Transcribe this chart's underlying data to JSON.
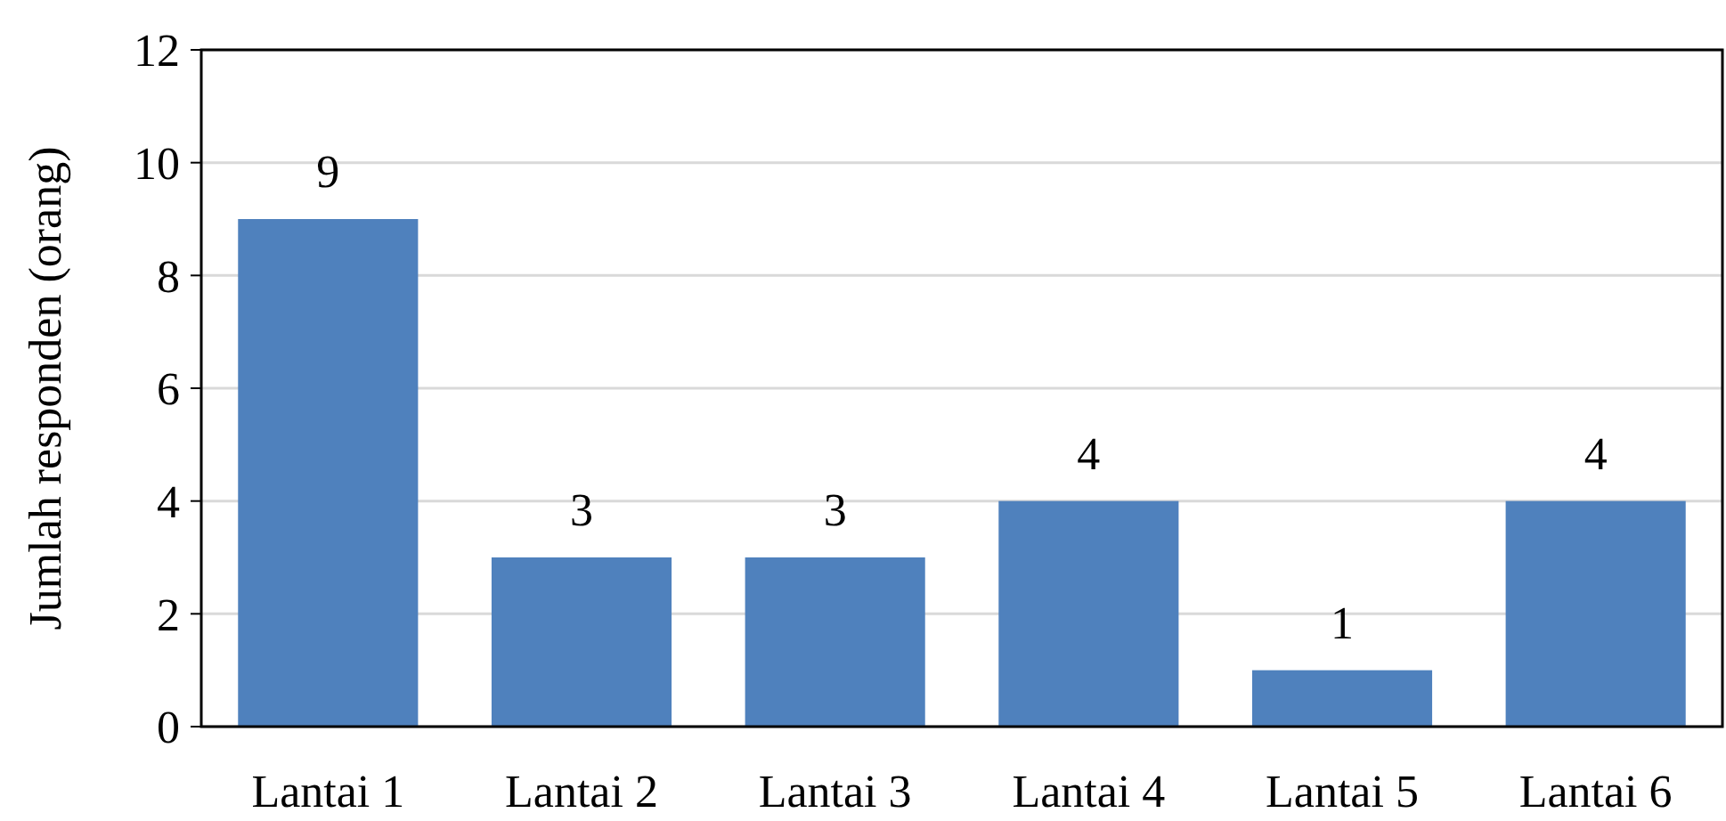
{
  "chart_data": {
    "type": "bar",
    "ylabel": "Jumlah responden (orang)",
    "categories": [
      "Lantai 1",
      "Lantai 2",
      "Lantai 3",
      "Lantai 4",
      "Lantai 5",
      "Lantai 6"
    ],
    "values": [
      9,
      3,
      3,
      4,
      1,
      4
    ],
    "color": "#4f81bd",
    "ylim": [
      0,
      12
    ],
    "yticks": [
      0,
      2,
      4,
      6,
      8,
      10,
      12
    ],
    "grid": "y",
    "data_labels": true
  }
}
